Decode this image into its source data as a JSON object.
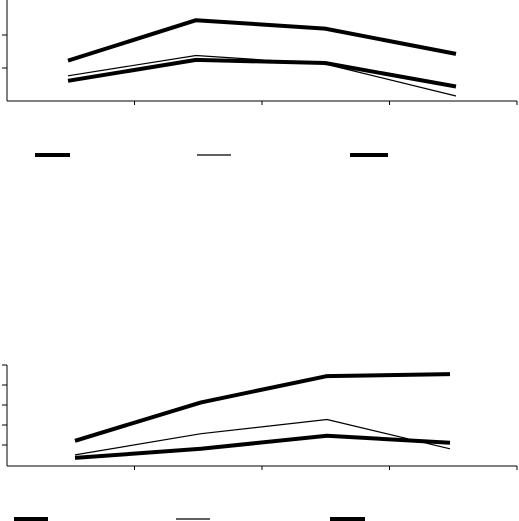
{
  "chart_data": [
    {
      "type": "line",
      "categories": [
        "",
        "",
        "",
        ""
      ],
      "ylim": [
        0,
        3
      ],
      "grid": false,
      "legend": "bottom",
      "series": [
        {
          "values": [
            1.2,
            2.4,
            2.15,
            1.4
          ],
          "stroke": "#000000",
          "weight": "heavy"
        },
        {
          "values": [
            0.75,
            1.35,
            1.1,
            0.15
          ],
          "stroke": "#000000",
          "weight": "thin"
        },
        {
          "values": [
            0.6,
            1.22,
            1.13,
            0.43
          ],
          "stroke": "#000000",
          "weight": "heavy"
        }
      ]
    },
    {
      "type": "line",
      "categories": [
        "",
        "",
        "",
        ""
      ],
      "ylim": [
        0,
        5
      ],
      "grid": false,
      "legend": "bottom",
      "series": [
        {
          "values": [
            1.25,
            3.15,
            4.45,
            4.55
          ],
          "stroke": "#000000",
          "weight": "heavy"
        },
        {
          "values": [
            0.55,
            1.6,
            2.3,
            0.85
          ],
          "stroke": "#000000",
          "weight": "thin"
        },
        {
          "values": [
            0.4,
            0.85,
            1.5,
            1.15
          ],
          "stroke": "#000000",
          "weight": "heavy"
        }
      ]
    }
  ]
}
